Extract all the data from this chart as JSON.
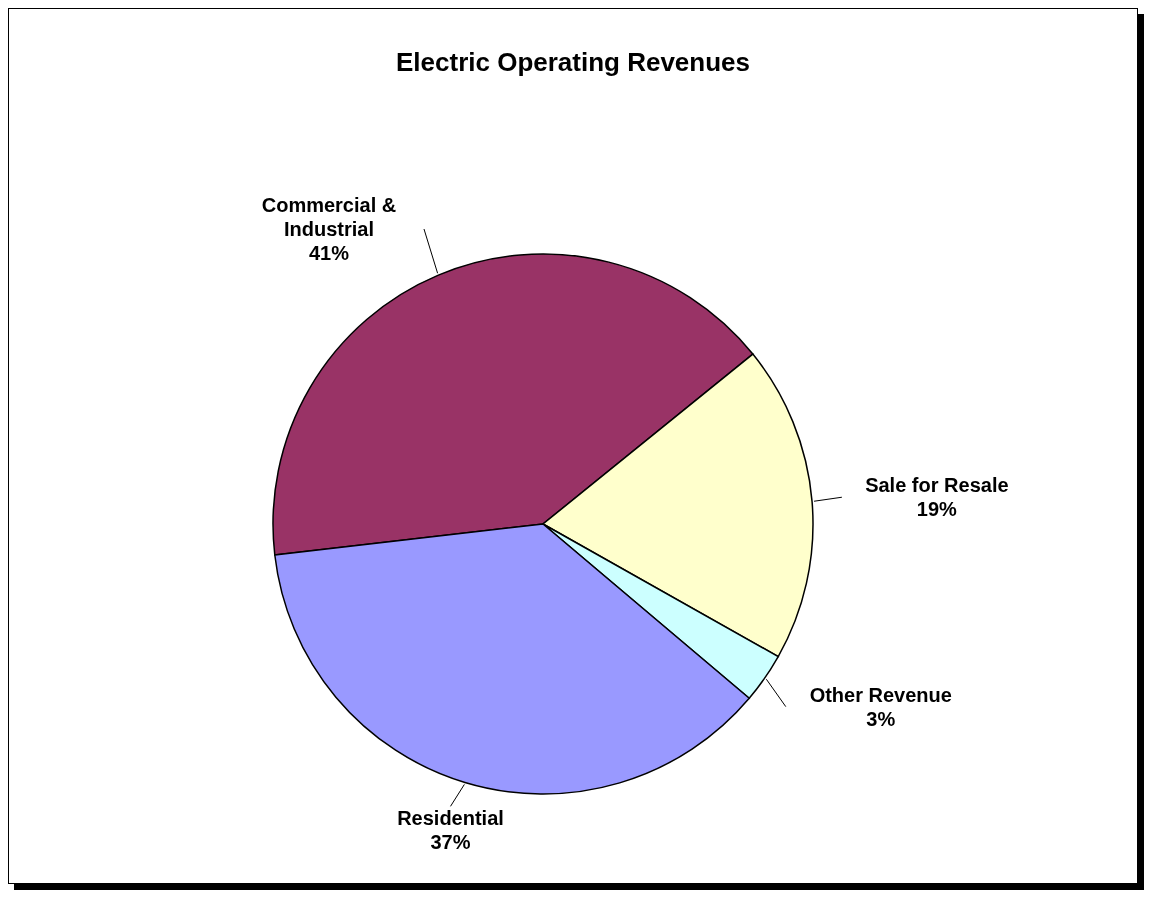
{
  "chart_data": {
    "type": "pie",
    "title": "Electric Operating Revenues",
    "categories": [
      "Commercial & Industrial",
      "Sale for Resale",
      "Other Revenue",
      "Residential"
    ],
    "values": [
      41,
      19,
      3,
      37
    ],
    "colors": [
      "#993366",
      "#ffffcc",
      "#ccffff",
      "#9999ff"
    ],
    "value_labels": [
      "41%",
      "19%",
      "3%",
      "37%"
    ]
  }
}
